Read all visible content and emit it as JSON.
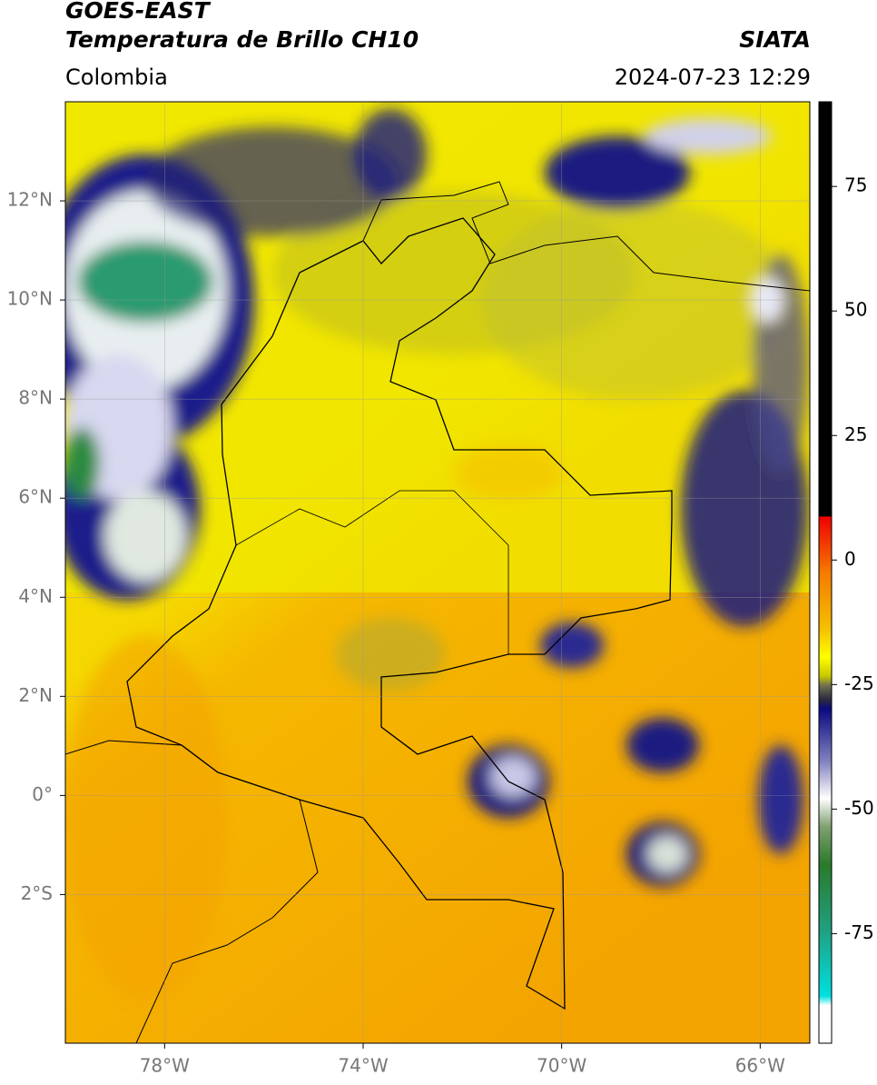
{
  "header": {
    "satellite": "GOES-EAST",
    "product": "Temperatura de Brillo CH10",
    "source": "SIATA",
    "region": "Colombia",
    "timestamp": "2024-07-23 12:29"
  },
  "map": {
    "xlim": [
      -80,
      -65
    ],
    "ylim": [
      -5,
      14
    ],
    "xticks": [
      {
        "value": -78,
        "label": "78°W"
      },
      {
        "value": -74,
        "label": "74°W"
      },
      {
        "value": -70,
        "label": "70°W"
      },
      {
        "value": -66,
        "label": "66°W"
      }
    ],
    "yticks": [
      {
        "value": 12,
        "label": "12°N"
      },
      {
        "value": 10,
        "label": "10°N"
      },
      {
        "value": 8,
        "label": "8°N"
      },
      {
        "value": 6,
        "label": "6°N"
      },
      {
        "value": 4,
        "label": "4°N"
      },
      {
        "value": 2,
        "label": "2°N"
      },
      {
        "value": 0,
        "label": "0°"
      },
      {
        "value": -2,
        "label": "2°S"
      }
    ],
    "grid": true
  },
  "colorbar": {
    "lim": [
      -97,
      92
    ],
    "ticks": [
      75,
      50,
      25,
      0,
      -25,
      -50,
      -75
    ]
  }
}
